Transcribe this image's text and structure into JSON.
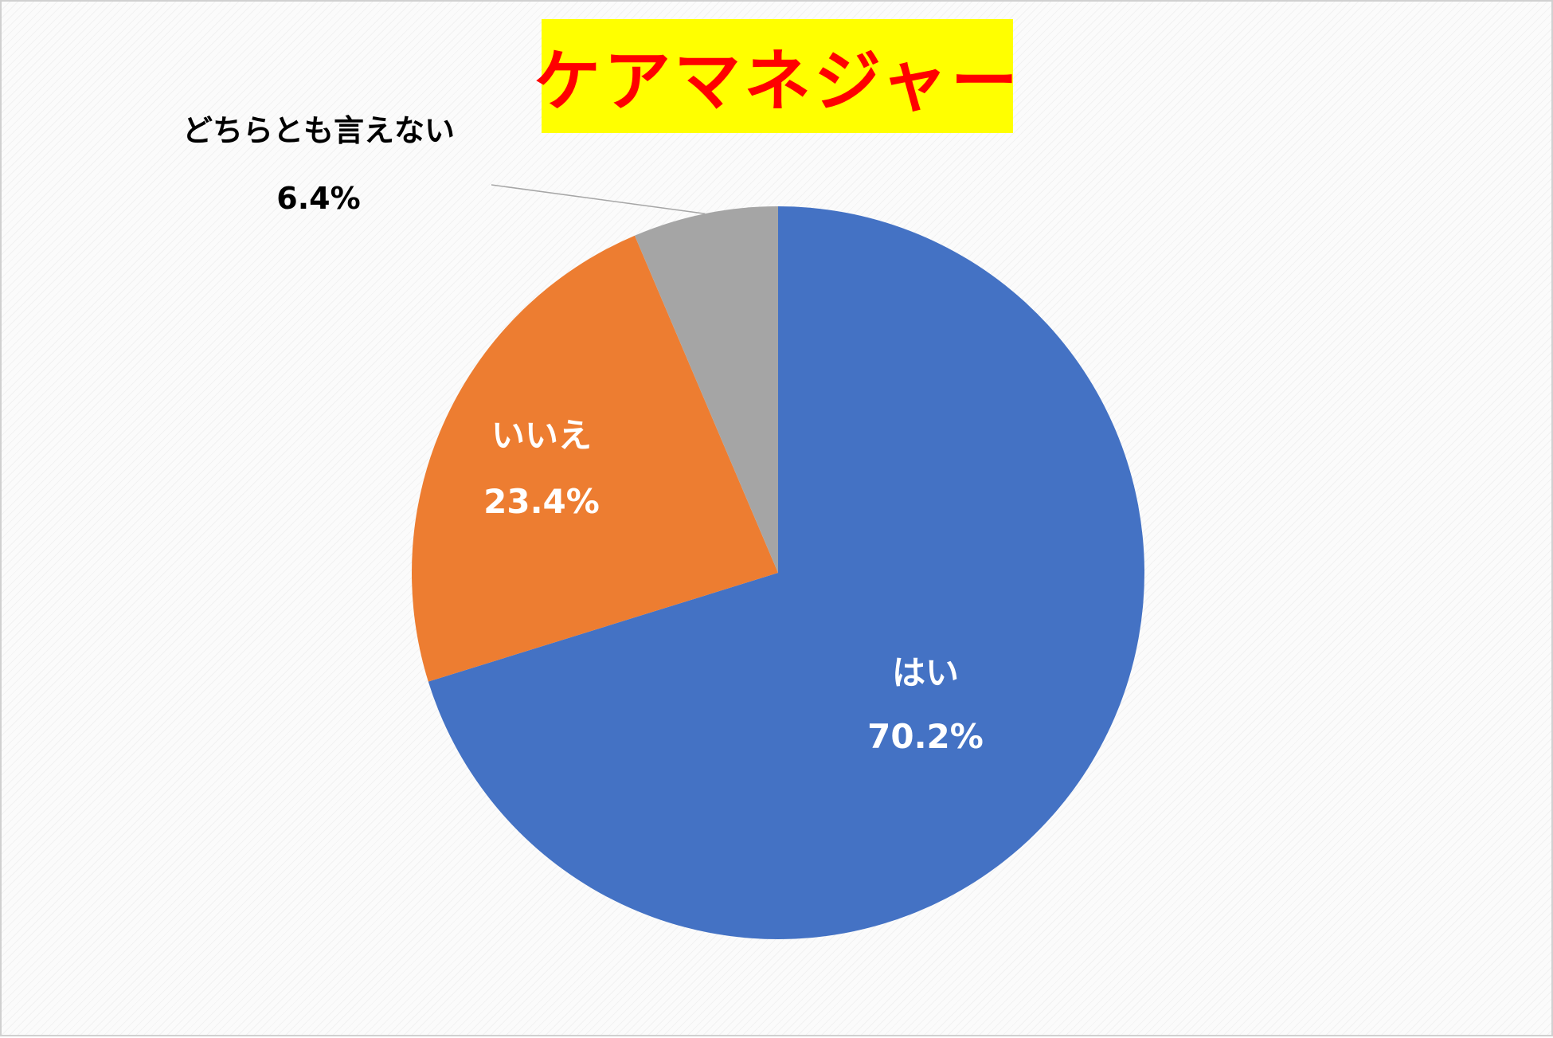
{
  "chart_data": {
    "type": "pie",
    "title": "ケアマネジャー",
    "slices": [
      {
        "label": "はい",
        "value": 70.2,
        "display": "70.2%",
        "color": "#4472c4",
        "label_color": "#ffffff"
      },
      {
        "label": "いいえ",
        "value": 23.4,
        "display": "23.4%",
        "color": "#ed7d31",
        "label_color": "#ffffff"
      },
      {
        "label": "どちらとも言えない",
        "value": 6.4,
        "display": "6.4%",
        "color": "#a5a5a5",
        "label_color": "#000000"
      }
    ],
    "start_angle": "12 o'clock",
    "direction": "clockwise",
    "legend": "none"
  },
  "colors": {
    "title_background": "#ffff00",
    "title_text": "#ff0000"
  }
}
